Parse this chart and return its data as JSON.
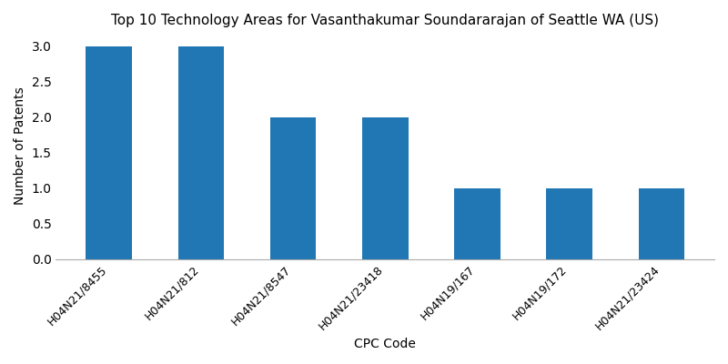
{
  "title": "Top 10 Technology Areas for Vasanthakumar Soundararajan of Seattle WA (US)",
  "xlabel": "CPC Code",
  "ylabel": "Number of Patents",
  "categories": [
    "H04N21/8455",
    "H04N21/812",
    "H04N21/8547",
    "H04N21/23418",
    "H04N19/167",
    "H04N19/172",
    "H04N21/23424"
  ],
  "values": [
    3,
    3,
    2,
    2,
    1,
    1,
    1
  ],
  "bar_color": "#2077b4",
  "bar_width": 0.5,
  "ylim": [
    0,
    3.2
  ],
  "yticks": [
    0.0,
    0.5,
    1.0,
    1.5,
    2.0,
    2.5,
    3.0
  ],
  "figsize": [
    8,
    4
  ],
  "dpi": 100,
  "title_fontsize": 11
}
